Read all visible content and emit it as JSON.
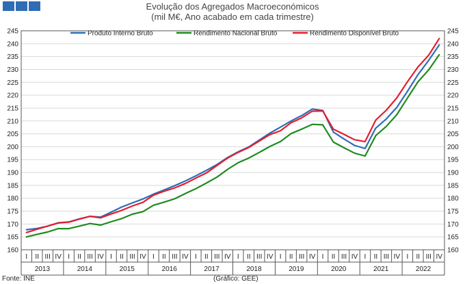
{
  "header": {
    "logo_icon": "ine-logo-blocks",
    "title_line1": "Evolução dos Agregados Macroeconómicos",
    "title_line2": "(mil M€, Ano acabado em cada trimestre)"
  },
  "footer": {
    "source": "Fonte: INE",
    "credit": "(Gráfico: GEE)"
  },
  "chart_data": {
    "type": "line",
    "title": "Evolução dos Agregados Macroeconómicos",
    "subtitle": "(mil M€, Ano acabado em cada trimestre)",
    "xlabel": "",
    "ylabel": "",
    "ylim": [
      160,
      245
    ],
    "yticks": [
      160,
      165,
      170,
      175,
      180,
      185,
      190,
      195,
      200,
      205,
      210,
      215,
      220,
      225,
      230,
      235,
      240,
      245
    ],
    "grid": true,
    "legend_position": "top",
    "quarters": [
      "I",
      "II",
      "III",
      "IV"
    ],
    "years": [
      "2013",
      "2014",
      "2015",
      "2016",
      "2017",
      "2018",
      "2019",
      "2020",
      "2021",
      "2022"
    ],
    "series": [
      {
        "name": "Produto Interno Bruto",
        "color": "#2e6db4",
        "values": [
          167.8,
          168.3,
          169.2,
          170.5,
          170.8,
          172.0,
          173.0,
          172.7,
          174.6,
          176.6,
          178.2,
          179.7,
          181.6,
          183.2,
          184.9,
          186.7,
          188.7,
          190.8,
          193.1,
          195.8,
          198.0,
          199.9,
          202.6,
          205.3,
          207.6,
          210.0,
          212.1,
          214.6,
          214.1,
          205.7,
          203.0,
          200.5,
          199.3,
          207.2,
          210.8,
          215.3,
          221.5,
          228.0,
          233.5,
          239.5
        ]
      },
      {
        "name": "Rendimento Nacional Bruto",
        "color": "#1f8a1f",
        "values": [
          165.0,
          166.0,
          166.9,
          168.2,
          168.2,
          169.2,
          170.2,
          169.6,
          170.9,
          172.1,
          173.8,
          174.8,
          177.3,
          178.5,
          179.8,
          181.8,
          183.7,
          185.9,
          188.2,
          191.2,
          193.8,
          195.6,
          197.8,
          200.1,
          202.0,
          205.1,
          206.8,
          208.7,
          208.5,
          201.8,
          199.6,
          197.5,
          196.4,
          204.3,
          207.9,
          212.5,
          218.9,
          225.2,
          229.8,
          235.7
        ]
      },
      {
        "name": "Rendimento Disponível Bruto",
        "color": "#e31e2e",
        "values": [
          166.7,
          168.0,
          169.2,
          170.4,
          170.7,
          171.9,
          173.0,
          172.4,
          173.9,
          175.3,
          177.0,
          178.4,
          181.2,
          182.7,
          184.0,
          185.7,
          187.8,
          189.8,
          192.7,
          195.6,
          197.8,
          199.7,
          202.2,
          204.7,
          206.2,
          209.3,
          211.2,
          213.8,
          213.9,
          206.8,
          204.8,
          202.7,
          202.0,
          210.3,
          214.2,
          219.0,
          225.2,
          231.0,
          235.5,
          242.0
        ]
      }
    ]
  }
}
